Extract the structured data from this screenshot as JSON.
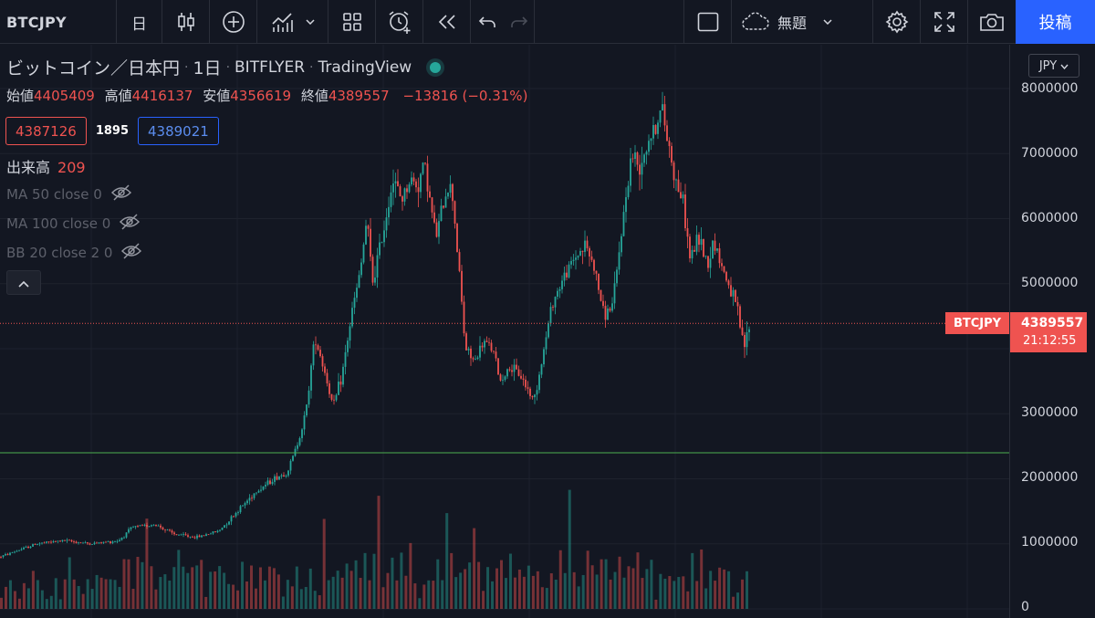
{
  "toolbar": {
    "symbol": "BTCJPY",
    "interval": "日",
    "save_label": "無題",
    "publish_label": "投稿"
  },
  "legend": {
    "title": "ビットコイン／日本円",
    "interval": "1日",
    "exchange": "BITFLYER",
    "source": "TradingView",
    "ohlc": {
      "open_label": "始値",
      "open": "4405409",
      "high_label": "高値",
      "high": "4416137",
      "low_label": "安値",
      "low": "4356619",
      "close_label": "終値",
      "close": "4389557",
      "change": "−13816 (−0.31%)"
    },
    "bid": "4387126",
    "spread": "1895",
    "ask": "4389021",
    "volume_label": "出来高",
    "volume_value": "209",
    "indicators": [
      "MA 50 close 0",
      "MA 100 close 0",
      "BB 20 close 2 0"
    ]
  },
  "price_scale": {
    "unit": "JPY",
    "ticks": [
      "8000000",
      "7000000",
      "6000000",
      "5000000",
      "3000000",
      "2000000",
      "1000000",
      "0"
    ],
    "last_symbol": "BTCJPY",
    "last_price": "4389557",
    "countdown": "21:12:55"
  },
  "colors": {
    "background": "#131722",
    "up": "#26a69a",
    "down": "#ef5350",
    "accent": "#2962ff",
    "horizontal_line": "#4caf50"
  },
  "chart_data": {
    "type": "candlestick",
    "symbol": "BTCJPY",
    "ylim": [
      0,
      8200000
    ],
    "last_price": 4389557,
    "horizontal_line": 2400000,
    "trend_path": [
      [
        0,
        800000
      ],
      [
        20,
        900000
      ],
      [
        40,
        1000000
      ],
      [
        70,
        1050000
      ],
      [
        100,
        1000000
      ],
      [
        130,
        1050000
      ],
      [
        145,
        1250000
      ],
      [
        170,
        1300000
      ],
      [
        190,
        1150000
      ],
      [
        215,
        1100000
      ],
      [
        240,
        1200000
      ],
      [
        260,
        1500000
      ],
      [
        280,
        1800000
      ],
      [
        300,
        2000000
      ],
      [
        315,
        2100000
      ],
      [
        325,
        2500000
      ],
      [
        335,
        3000000
      ],
      [
        345,
        4200000
      ],
      [
        355,
        3700000
      ],
      [
        365,
        3100000
      ],
      [
        375,
        3600000
      ],
      [
        385,
        4500000
      ],
      [
        395,
        5200000
      ],
      [
        402,
        6000000
      ],
      [
        408,
        5000000
      ],
      [
        420,
        5800000
      ],
      [
        430,
        6600000
      ],
      [
        440,
        6300000
      ],
      [
        450,
        6600000
      ],
      [
        458,
        6500000
      ],
      [
        465,
        6900000
      ],
      [
        472,
        6200000
      ],
      [
        478,
        5700000
      ],
      [
        488,
        6400000
      ],
      [
        495,
        6500000
      ],
      [
        502,
        5400000
      ],
      [
        510,
        4000000
      ],
      [
        520,
        3800000
      ],
      [
        530,
        4100000
      ],
      [
        540,
        4000000
      ],
      [
        548,
        3500000
      ],
      [
        558,
        3700000
      ],
      [
        570,
        3600000
      ],
      [
        585,
        3200000
      ],
      [
        595,
        3900000
      ],
      [
        605,
        4700000
      ],
      [
        618,
        5100000
      ],
      [
        630,
        5400000
      ],
      [
        642,
        5600000
      ],
      [
        652,
        5200000
      ],
      [
        662,
        4500000
      ],
      [
        672,
        4700000
      ],
      [
        682,
        5900000
      ],
      [
        692,
        7000000
      ],
      [
        700,
        6800000
      ],
      [
        710,
        7200000
      ],
      [
        718,
        7400000
      ],
      [
        725,
        7700000
      ],
      [
        732,
        7200000
      ],
      [
        740,
        6600000
      ],
      [
        748,
        6300000
      ],
      [
        756,
        5400000
      ],
      [
        766,
        5700000
      ],
      [
        776,
        5300000
      ],
      [
        782,
        5700000
      ],
      [
        790,
        5300000
      ],
      [
        798,
        5000000
      ],
      [
        808,
        4600000
      ],
      [
        815,
        4000000
      ],
      [
        822,
        4390000
      ]
    ],
    "volume_bar_count": 165
  }
}
